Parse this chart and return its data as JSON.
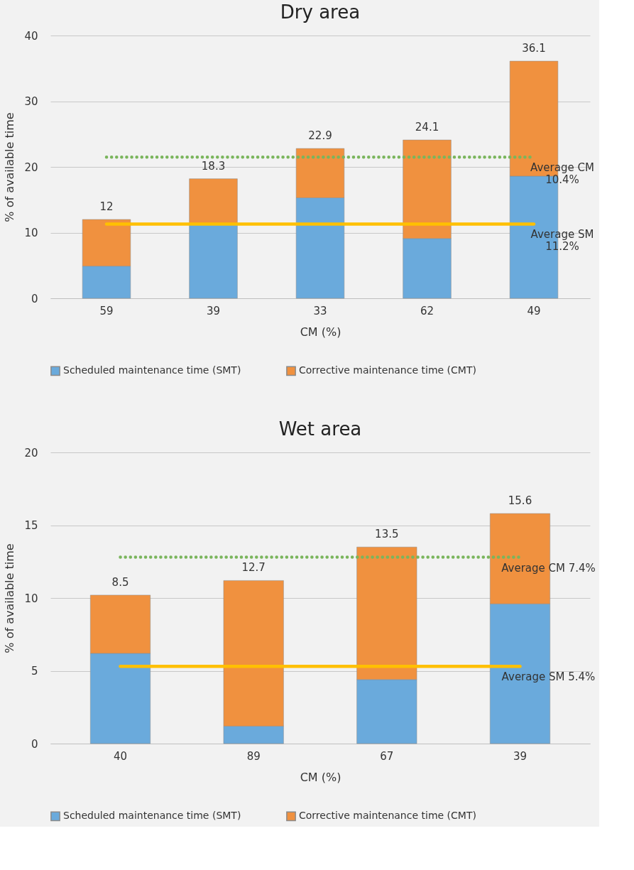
{
  "chart_data": [
    {
      "type": "bar",
      "title": "Dry area",
      "xlabel": "CM (%)",
      "ylabel": "% of available time",
      "categories": [
        "59",
        "39",
        "33",
        "62",
        "49"
      ],
      "stacked": true,
      "ylim": [
        0,
        40
      ],
      "yticks": [
        0,
        10,
        20,
        30,
        40
      ],
      "grid": "y",
      "legend": "bottom",
      "series": [
        {
          "name": "Scheduled maintenance time (SMT)",
          "color": "#6aaadc",
          "values": [
            4.9,
            11.3,
            15.3,
            9.1,
            18.6
          ]
        },
        {
          "name": "Corrective maintenance time (CMT)",
          "color": "#f0913f",
          "values": [
            7.1,
            6.9,
            7.5,
            15.0,
            17.5
          ]
        },
        {
          "type": "line",
          "color": "#7ab55c",
          "line_style": "dotted",
          "values": [
            21.5,
            21.5,
            21.5,
            21.5,
            21.5
          ]
        },
        {
          "type": "line",
          "color": "#ffc000",
          "line_style": "solid",
          "values": [
            11.3,
            11.3,
            11.3,
            11.3,
            11.3
          ]
        }
      ],
      "totals": [
        "12",
        "18.3",
        "22.9",
        "24.1",
        "36.1"
      ],
      "annotations": [
        {
          "text": "Average CM\n10.4%",
          "x": "49",
          "y": 21.5
        },
        {
          "text": "Average SM\n11.2%",
          "x": "49",
          "y": 11.3
        }
      ]
    },
    {
      "type": "bar",
      "title": "Wet area",
      "xlabel": "CM (%)",
      "ylabel": "% of available time",
      "categories": [
        "40",
        "89",
        "67",
        "39"
      ],
      "stacked": true,
      "ylim": [
        0,
        20
      ],
      "yticks": [
        0,
        5,
        10,
        15,
        20
      ],
      "grid": "y",
      "legend": "bottom",
      "series": [
        {
          "name": "Scheduled maintenance time (SMT)",
          "color": "#6aaadc",
          "values": [
            6.2,
            1.2,
            4.4,
            9.6
          ]
        },
        {
          "name": "Corrective maintenance time (CMT)",
          "color": "#f0913f",
          "values": [
            4.0,
            10.0,
            9.1,
            6.2
          ]
        },
        {
          "type": "line",
          "color": "#7ab55c",
          "line_style": "dotted",
          "values": [
            12.8,
            12.8,
            12.8,
            12.8
          ]
        },
        {
          "type": "line",
          "color": "#ffc000",
          "line_style": "solid",
          "values": [
            5.3,
            5.3,
            5.3,
            5.3
          ]
        }
      ],
      "annotations": [
        {
          "text": "8.5",
          "x": "40",
          "y": 10.2
        },
        {
          "text": "12.7",
          "x": "89",
          "y": 11.2
        },
        {
          "text": "13.5",
          "x": "67",
          "y": 13.5
        },
        {
          "text": "15.6",
          "x": "39",
          "y": 15.8
        },
        {
          "text": "Average CM 7.4%",
          "x": "39",
          "y": 12.8
        },
        {
          "text": "Average SM 5.4%",
          "x": "39",
          "y": 5.3
        }
      ]
    }
  ]
}
